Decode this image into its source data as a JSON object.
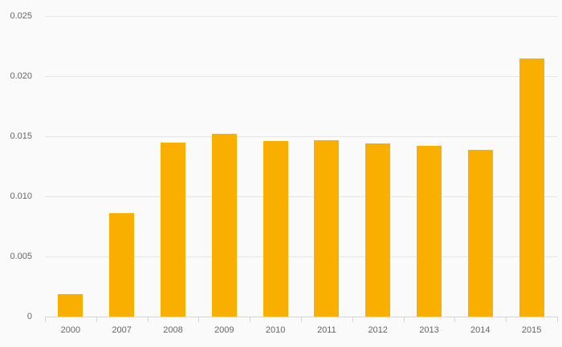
{
  "chart_data": {
    "type": "bar",
    "title": "",
    "xlabel": "",
    "ylabel": "",
    "categories": [
      "2000",
      "2007",
      "2008",
      "2009",
      "2010",
      "2011",
      "2012",
      "2013",
      "2014",
      "2015"
    ],
    "values": [
      0.0019,
      0.0086,
      0.0145,
      0.0152,
      0.0146,
      0.0147,
      0.0144,
      0.0142,
      0.0139,
      0.0215
    ],
    "series_name": "",
    "ylim": [
      0,
      0.025
    ],
    "ytick_interval": 0.005,
    "ytick_labels": [
      "0",
      "0.005",
      "0.010",
      "0.015",
      "0.020",
      "0.025"
    ],
    "grid": true,
    "legend_visible": false,
    "colors": {
      "bar": "#f8af00",
      "background": "#fafafa",
      "gridline": "#e6e6e6",
      "axis_line": "#ccd6eb",
      "label_text": "#666666"
    }
  }
}
